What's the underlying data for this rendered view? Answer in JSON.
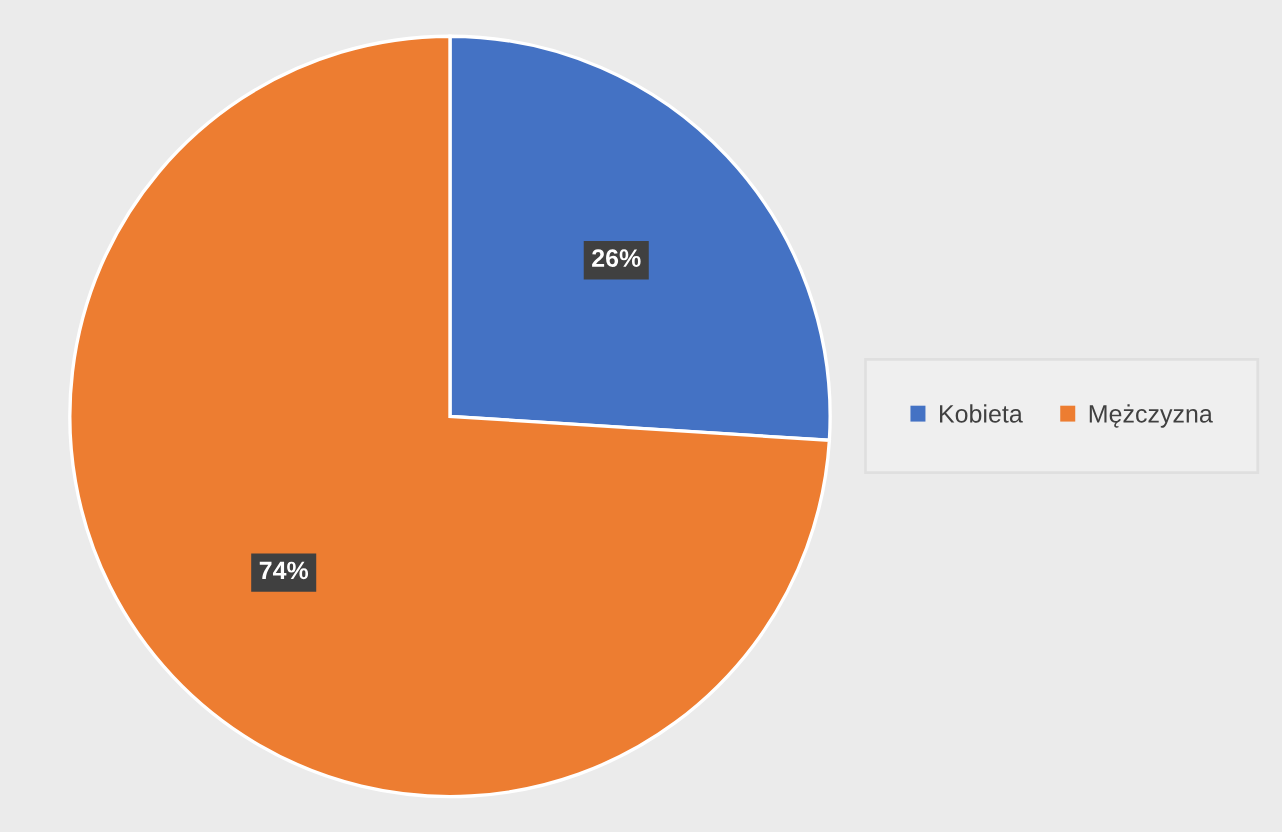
{
  "chart_data": {
    "type": "pie",
    "categories": [
      "Kobieta",
      "Mężczyzna"
    ],
    "values": [
      26,
      74
    ],
    "colors": [
      "#4472c4",
      "#ed7d31"
    ],
    "value_labels": [
      "26%",
      "74%"
    ],
    "legend": "right"
  }
}
